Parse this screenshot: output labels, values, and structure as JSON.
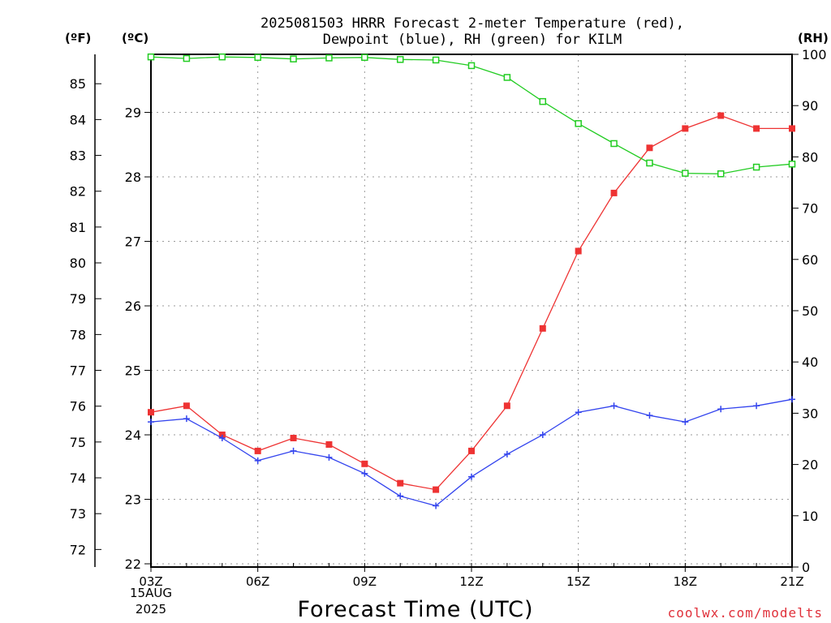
{
  "title_line1": "2025081503 HRRR Forecast 2-meter Temperature (red),",
  "title_line2": "Dewpoint (blue), RH (green) for KILM",
  "units": {
    "fahrenheit": "(ºF)",
    "celsius": "(ºC)",
    "rh": "(RH)"
  },
  "xlabel": "Forecast Time (UTC)",
  "credit": "coolwx.com/modelts",
  "date_label": {
    "day": "15AUG",
    "year": "2025"
  },
  "colors": {
    "temperature": "#ee3333",
    "dewpoint": "#3344ee",
    "rh": "#22cc22",
    "credit": "#e0303a"
  },
  "chart_data": {
    "type": "line",
    "x": [
      "03Z",
      "04Z",
      "05Z",
      "06Z",
      "07Z",
      "08Z",
      "09Z",
      "10Z",
      "11Z",
      "12Z",
      "13Z",
      "14Z",
      "15Z",
      "16Z",
      "17Z",
      "18Z",
      "19Z",
      "20Z",
      "21Z"
    ],
    "x_tick_labels": [
      "03Z",
      "06Z",
      "09Z",
      "12Z",
      "15Z",
      "18Z",
      "21Z"
    ],
    "celsius_ticks": [
      22,
      23,
      24,
      25,
      26,
      27,
      28,
      29
    ],
    "fahrenheit_ticks": [
      72,
      73,
      74,
      75,
      76,
      77,
      78,
      79,
      80,
      81,
      82,
      83,
      84,
      85
    ],
    "rh_ticks": [
      0,
      10,
      20,
      30,
      40,
      50,
      60,
      70,
      80,
      90,
      100
    ],
    "ylim_celsius": [
      21.95,
      29.9
    ],
    "ylim_rh": [
      0,
      100
    ],
    "grid": true,
    "series": [
      {
        "axis": "celsius",
        "marker": "filled-square",
        "values": [
          24.35,
          24.45,
          24.0,
          23.75,
          23.95,
          23.85,
          23.55,
          23.25,
          23.15,
          23.75,
          24.45,
          25.65,
          26.85,
          27.75,
          28.45,
          28.75,
          28.95,
          28.75,
          28.75
        ]
      },
      {
        "axis": "celsius",
        "marker": "plus",
        "values": [
          24.2,
          24.25,
          23.95,
          23.6,
          23.75,
          23.65,
          23.4,
          23.05,
          22.9,
          23.35,
          23.7,
          24.0,
          24.35,
          24.45,
          24.3,
          24.2,
          24.4,
          24.45,
          24.55
        ]
      },
      {
        "axis": "rh",
        "marker": "open-square",
        "values": [
          99.5,
          99.2,
          99.5,
          99.4,
          99.1,
          99.3,
          99.4,
          99.0,
          98.9,
          97.8,
          95.5,
          90.8,
          86.5,
          82.6,
          78.8,
          76.8,
          76.7,
          78.0,
          78.6
        ]
      }
    ]
  }
}
